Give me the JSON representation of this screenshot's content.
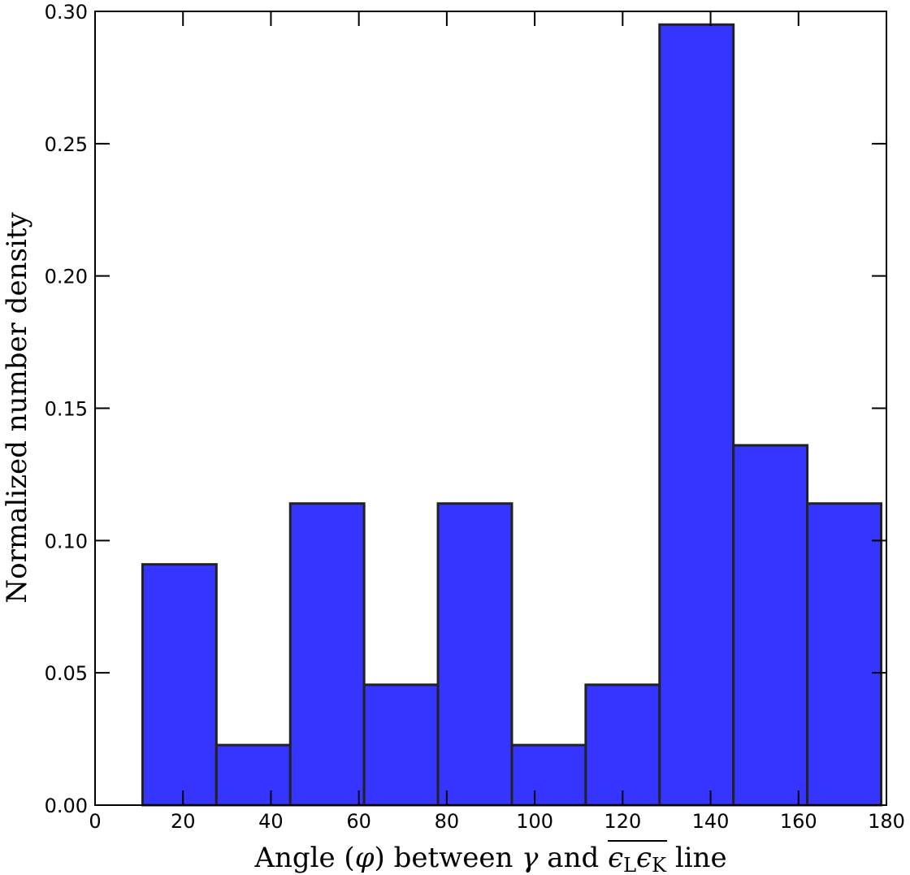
{
  "chart_data": {
    "type": "bar",
    "subtype": "histogram",
    "title": "",
    "xlabel": "Angle (φ) between γ and ϵLϵK line",
    "xlabel_parts": {
      "prefix": "Angle (",
      "phi": "φ",
      "middle": ") between ",
      "gamma": "γ",
      "and": " and ",
      "eps": "ϵ",
      "sub_L": "L",
      "sub_K": "K",
      "suffix": " line"
    },
    "ylabel": "Normalized number density",
    "xlim": [
      0,
      180
    ],
    "ylim": [
      0,
      0.3
    ],
    "xticks": [
      0,
      20,
      40,
      60,
      80,
      100,
      120,
      140,
      160,
      180
    ],
    "xtick_labels": [
      "0",
      "20",
      "40",
      "60",
      "80",
      "100",
      "120",
      "140",
      "160",
      "180"
    ],
    "yticks": [
      0.0,
      0.05,
      0.1,
      0.15,
      0.2,
      0.25,
      0.3
    ],
    "ytick_labels": [
      "0.00",
      "0.05",
      "0.10",
      "0.15",
      "0.20",
      "0.25",
      "0.30"
    ],
    "bin_edges": [
      10.8,
      27.6,
      44.4,
      61.2,
      78.0,
      94.8,
      111.6,
      128.4,
      145.2,
      162.0,
      178.8
    ],
    "values": [
      0.091,
      0.0227,
      0.114,
      0.0455,
      0.114,
      0.0227,
      0.0455,
      0.295,
      0.136,
      0.114
    ],
    "bar_color": "#3535ff",
    "edge_color": "#222222",
    "grid": false,
    "legend": "none"
  }
}
